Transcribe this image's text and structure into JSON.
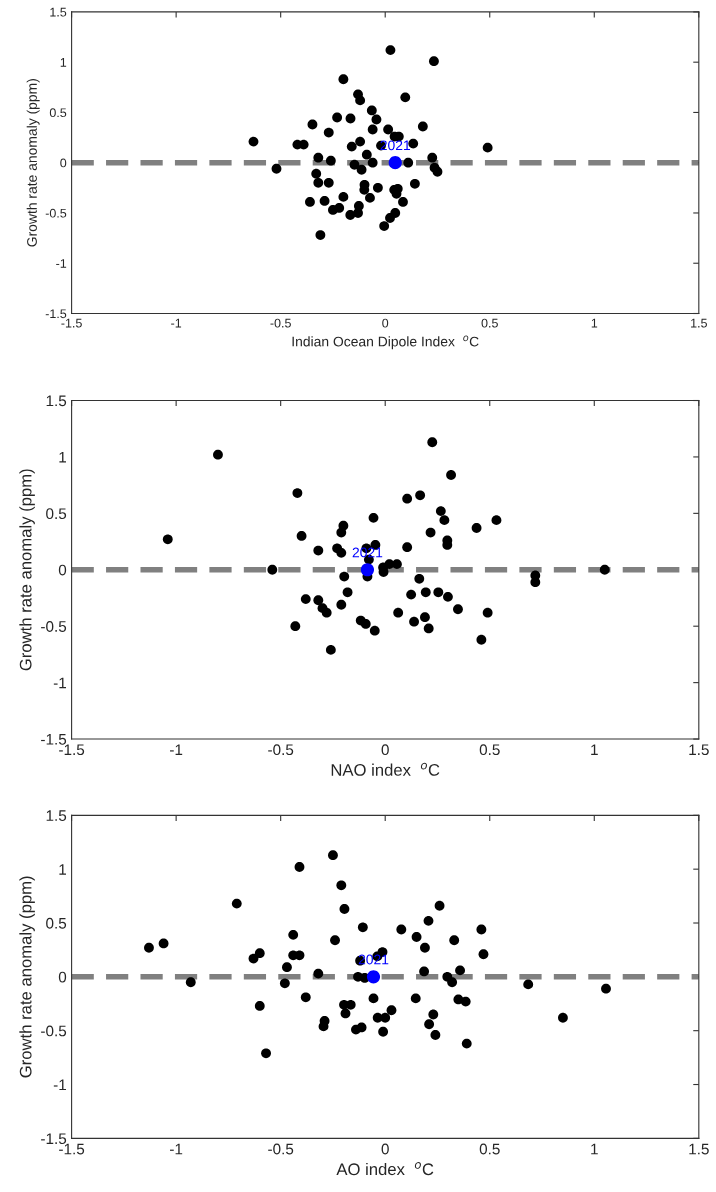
{
  "chart_data": [
    {
      "type": "scatter",
      "xlabel": "Indian Ocean Dipole Index  $^{o}$C",
      "ylabel": "Growth rate anomaly (ppm)",
      "xlim": [
        -1.5,
        1.5
      ],
      "ylim": [
        -1.5,
        1.5
      ],
      "xticks": [
        -1.5,
        -1,
        -0.5,
        0,
        0.5,
        1,
        1.5
      ],
      "yticks": [
        -1.5,
        -1,
        -0.5,
        0,
        0.5,
        1,
        1.5
      ],
      "grid": false,
      "marker": "circle",
      "series": [
        {
          "color": "#000000",
          "x": [
            0.025,
            0.233,
            -0.2,
            -0.13,
            -0.12,
            0.096,
            -0.064,
            -0.042,
            -0.23,
            -0.166,
            -0.348,
            0.18,
            -0.27,
            -0.06,
            0.014,
            0.045,
            0.065,
            -0.63,
            -0.42,
            -0.39,
            -0.12,
            -0.16,
            -0.02,
            0.134,
            0.49,
            -0.088,
            -0.32,
            -0.26,
            -0.147,
            -0.06,
            0.11,
            0.225,
            -0.113,
            -0.52,
            0.236,
            0.25,
            -0.33,
            -0.32,
            -0.27,
            -0.099,
            -0.1,
            -0.035,
            0.142,
            0.043,
            0.06,
            0.054,
            0.085,
            -0.073,
            -0.2,
            -0.36,
            -0.29,
            -0.25,
            -0.22,
            -0.126,
            -0.13,
            -0.167,
            0.048,
            0.023,
            -0.005,
            -0.31
          ],
          "values": [
            1.12,
            1.01,
            0.83,
            0.68,
            0.62,
            0.65,
            0.52,
            0.43,
            0.45,
            0.44,
            0.38,
            0.36,
            0.3,
            0.33,
            0.33,
            0.26,
            0.26,
            0.21,
            0.18,
            0.18,
            0.21,
            0.16,
            0.17,
            0.19,
            0.15,
            0.08,
            0.05,
            0.02,
            -0.02,
            0.0,
            0.0,
            0.05,
            -0.07,
            -0.06,
            -0.05,
            -0.09,
            -0.11,
            -0.2,
            -0.2,
            -0.22,
            -0.27,
            -0.25,
            -0.21,
            -0.27,
            -0.26,
            -0.31,
            -0.39,
            -0.35,
            -0.34,
            -0.39,
            -0.38,
            -0.47,
            -0.45,
            -0.43,
            -0.5,
            -0.52,
            -0.5,
            -0.55,
            -0.63,
            -0.72
          ]
        },
        {
          "color": "#0000ff",
          "x": [
            0.048
          ],
          "values": [
            0.0
          ]
        }
      ],
      "annotations": [
        {
          "text": "2021",
          "x": 0.048,
          "y": 0.0
        }
      ],
      "ref_lines": [
        {
          "axis": "y",
          "value": 0,
          "color": "#808080",
          "line_style": "dashed"
        }
      ]
    },
    {
      "type": "scatter",
      "xlabel": "NAO index  $^{o}$C",
      "ylabel": "Growth rate anomaly (ppm)",
      "xlim": [
        -1.5,
        1.5
      ],
      "ylim": [
        -1.5,
        1.5
      ],
      "xticks": [
        -1.5,
        -1,
        -0.5,
        0,
        0.5,
        1,
        1.5
      ],
      "yticks": [
        -1.5,
        -1,
        -0.5,
        0,
        0.5,
        1,
        1.5
      ],
      "grid": false,
      "marker": "circle",
      "series": [
        {
          "color": "#000000",
          "x": [
            -0.8,
            -1.04,
            -0.54,
            -0.42,
            -0.4,
            -0.32,
            -0.2,
            -0.21,
            -0.23,
            -0.21,
            -0.056,
            -0.09,
            -0.047,
            -0.078,
            -0.01,
            0.02,
            0.056,
            -0.008,
            -0.085,
            -0.196,
            -0.18,
            -0.38,
            -0.32,
            -0.3,
            -0.28,
            -0.21,
            -0.43,
            -0.26,
            -0.117,
            -0.093,
            -0.05,
            0.062,
            0.105,
            0.105,
            0.167,
            0.225,
            0.315,
            0.266,
            0.283,
            0.217,
            0.297,
            0.297,
            0.437,
            0.532,
            0.163,
            0.124,
            0.194,
            0.254,
            0.3,
            0.348,
            0.138,
            0.19,
            0.208,
            0.49,
            0.46,
            0.718,
            0.718,
            1.05
          ],
          "values": [
            1.02,
            0.27,
            0.0,
            0.68,
            0.3,
            0.17,
            0.39,
            0.33,
            0.19,
            0.15,
            0.46,
            0.19,
            0.22,
            0.09,
            0.02,
            0.05,
            0.05,
            -0.02,
            -0.06,
            -0.06,
            -0.2,
            -0.26,
            -0.27,
            -0.34,
            -0.38,
            -0.31,
            -0.5,
            -0.71,
            -0.45,
            -0.48,
            -0.54,
            -0.38,
            0.2,
            0.63,
            0.66,
            1.13,
            0.84,
            0.52,
            0.44,
            0.33,
            0.26,
            0.22,
            0.37,
            0.44,
            -0.08,
            -0.22,
            -0.2,
            -0.2,
            -0.24,
            -0.35,
            -0.46,
            -0.42,
            -0.52,
            -0.38,
            -0.62,
            -0.05,
            -0.11,
            0.0
          ]
        },
        {
          "color": "#0000ff",
          "x": [
            -0.085
          ],
          "values": [
            0.0
          ]
        }
      ],
      "annotations": [
        {
          "text": "2021",
          "x": -0.085,
          "y": 0.0
        }
      ],
      "ref_lines": [
        {
          "axis": "y",
          "value": 0,
          "color": "#808080",
          "line_style": "dashed"
        }
      ]
    },
    {
      "type": "scatter",
      "xlabel": "AO index  $^{o}$C",
      "ylabel": "Growth rate anomaly (ppm)",
      "xlim": [
        -1.5,
        1.5
      ],
      "ylim": [
        -1.5,
        1.5
      ],
      "xticks": [
        -1.5,
        -1,
        -0.5,
        0,
        0.5,
        1,
        1.5
      ],
      "yticks": [
        -1.5,
        -1,
        -0.5,
        0,
        0.5,
        1,
        1.5
      ],
      "grid": false,
      "marker": "circle",
      "series": [
        {
          "color": "#000000",
          "x": [
            -1.13,
            -1.06,
            -0.93,
            -0.71,
            -0.63,
            -0.6,
            -0.6,
            -0.57,
            -0.41,
            -0.44,
            -0.44,
            -0.41,
            -0.47,
            -0.48,
            -0.38,
            -0.32,
            -0.25,
            -0.21,
            -0.195,
            -0.24,
            -0.107,
            -0.12,
            -0.038,
            -0.013,
            -0.13,
            -0.098,
            -0.197,
            -0.165,
            -0.19,
            -0.29,
            -0.295,
            -0.113,
            -0.14,
            -0.056,
            -0.036,
            0.0,
            0.03,
            -0.01,
            0.077,
            0.15,
            0.207,
            0.26,
            0.19,
            0.33,
            0.186,
            0.297,
            0.32,
            0.358,
            0.46,
            0.47,
            0.146,
            0.35,
            0.385,
            0.23,
            0.21,
            0.24,
            0.39,
            0.684,
            0.85,
            1.056
          ],
          "values": [
            0.27,
            0.31,
            -0.05,
            0.68,
            0.17,
            0.22,
            -0.27,
            -0.71,
            1.02,
            0.39,
            0.2,
            0.2,
            0.09,
            -0.06,
            -0.19,
            0.03,
            1.13,
            0.85,
            0.63,
            0.34,
            0.46,
            0.15,
            0.19,
            0.23,
            0.0,
            -0.01,
            -0.26,
            -0.26,
            -0.34,
            -0.41,
            -0.46,
            -0.47,
            -0.49,
            -0.2,
            -0.38,
            -0.38,
            -0.31,
            -0.51,
            0.44,
            0.37,
            0.52,
            0.66,
            0.27,
            0.34,
            0.05,
            0.0,
            -0.05,
            0.06,
            0.44,
            0.21,
            -0.2,
            -0.21,
            -0.23,
            -0.35,
            -0.44,
            -0.54,
            -0.62,
            -0.07,
            -0.38,
            -0.11
          ]
        },
        {
          "color": "#0000ff",
          "x": [
            -0.056
          ],
          "values": [
            0.0
          ]
        }
      ],
      "annotations": [
        {
          "text": "2021",
          "x": -0.056,
          "y": 0.0
        }
      ],
      "ref_lines": [
        {
          "axis": "y",
          "value": 0,
          "color": "#808080",
          "line_style": "dashed"
        }
      ]
    }
  ]
}
